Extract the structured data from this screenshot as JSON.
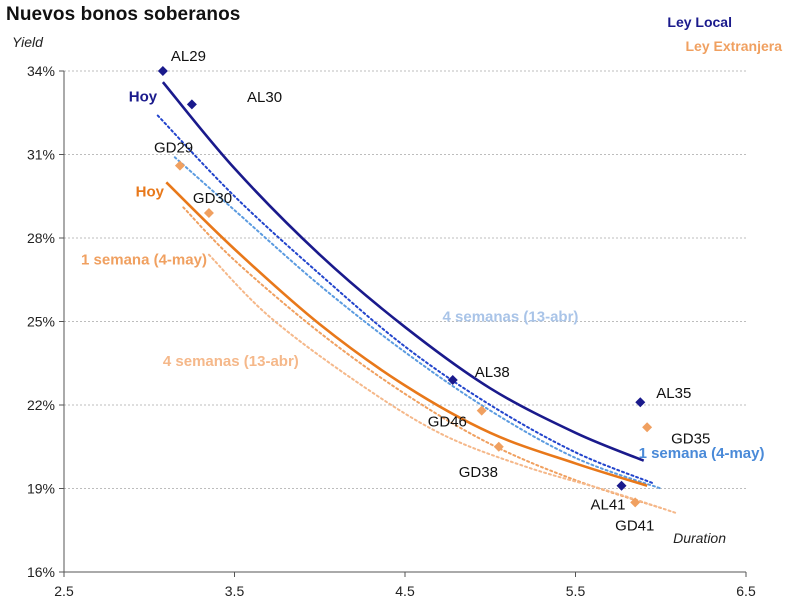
{
  "chart_data": {
    "type": "scatter",
    "title": "Nuevos bonos soberanos",
    "ylabel": "Yield",
    "xlabel": "Duration",
    "xlim": [
      2.5,
      6.5
    ],
    "ylim": [
      16,
      34
    ],
    "xticks": [
      2.5,
      3.5,
      4.5,
      5.5,
      6.5
    ],
    "xtick_labels": [
      "2.5",
      "3.5",
      "4.5",
      "5.5",
      "6.5"
    ],
    "yticks": [
      16,
      19,
      22,
      25,
      28,
      31,
      34
    ],
    "ytick_labels": [
      "16%",
      "19%",
      "22%",
      "25%",
      "28%",
      "31%",
      "34%"
    ],
    "grid": true,
    "legend": [
      {
        "label": "Ley Local",
        "color": "#1a1a8c"
      },
      {
        "label": "Ley Extranjera",
        "color": "#f0a060"
      }
    ],
    "series": [
      {
        "name": "Ley Local",
        "color": "#1a1a8c",
        "points": [
          {
            "name": "AL29",
            "x": 3.08,
            "y": 34.0
          },
          {
            "name": "AL30",
            "x": 3.25,
            "y": 32.8
          },
          {
            "name": "AL38",
            "x": 4.78,
            "y": 22.9
          },
          {
            "name": "AL35",
            "x": 5.88,
            "y": 22.1
          },
          {
            "name": "AL41",
            "x": 5.77,
            "y": 19.1
          }
        ]
      },
      {
        "name": "Ley Extranjera",
        "color": "#f0a060",
        "points": [
          {
            "name": "GD29",
            "x": 3.18,
            "y": 30.6
          },
          {
            "name": "GD30",
            "x": 3.35,
            "y": 28.9
          },
          {
            "name": "GD46",
            "x": 4.95,
            "y": 21.8
          },
          {
            "name": "GD38",
            "x": 5.05,
            "y": 20.5
          },
          {
            "name": "GD35",
            "x": 5.92,
            "y": 21.2
          },
          {
            "name": "GD41",
            "x": 5.85,
            "y": 18.5
          }
        ]
      }
    ],
    "curves": [
      {
        "name": "Hoy (Ley Local)",
        "color": "#1a1a8c",
        "style": "solid",
        "x": [
          3.08,
          3.5,
          4.0,
          4.5,
          5.0,
          5.5,
          5.9
        ],
        "y": [
          33.6,
          30.5,
          27.4,
          24.8,
          22.6,
          21.0,
          20.0
        ]
      },
      {
        "name": "1 semana (4-may) Ley Local",
        "color": "#2244cc",
        "style": "dotted",
        "x": [
          3.05,
          3.5,
          4.0,
          4.5,
          5.0,
          5.5,
          5.95
        ],
        "y": [
          32.4,
          29.5,
          26.7,
          24.1,
          22.0,
          20.3,
          19.2
        ]
      },
      {
        "name": "4 semanas (13-abr) Ley Local",
        "color": "#5b9be0",
        "style": "dotted",
        "x": [
          3.15,
          3.5,
          4.0,
          4.5,
          5.0,
          5.5,
          6.0
        ],
        "y": [
          30.9,
          29.0,
          26.3,
          23.9,
          21.8,
          20.1,
          19.0
        ]
      },
      {
        "name": "Hoy (Ley Extranjera)",
        "color": "#e8781a",
        "style": "solid",
        "x": [
          3.1,
          3.5,
          4.0,
          4.5,
          5.0,
          5.5,
          5.92
        ],
        "y": [
          30.0,
          27.6,
          24.9,
          22.7,
          21.0,
          19.9,
          19.1
        ]
      },
      {
        "name": "1 semana (4-may) Ley Extranjera",
        "color": "#f0a060",
        "style": "dotted",
        "x": [
          3.2,
          3.5,
          4.0,
          4.5,
          5.0,
          5.5,
          6.0
        ],
        "y": [
          29.1,
          27.2,
          24.6,
          22.4,
          20.6,
          19.3,
          18.3
        ]
      },
      {
        "name": "4 semanas (13-abr) Ley Extranjera",
        "color": "#f5b88a",
        "style": "dotted",
        "x": [
          3.35,
          3.7,
          4.2,
          4.7,
          5.2,
          5.7,
          6.1
        ],
        "y": [
          27.4,
          25.2,
          22.9,
          21.0,
          19.8,
          18.9,
          18.1
        ]
      }
    ],
    "annotations": [
      {
        "text": "Hoy",
        "color": "#1a1a8c",
        "x": 2.88,
        "y": 32.9
      },
      {
        "text": "Hoy",
        "color": "#e8781a",
        "x": 2.92,
        "y": 29.5
      },
      {
        "text": "1 semana (4-may)",
        "color": "#f0a060",
        "x": 2.6,
        "y": 27.05
      },
      {
        "text": "4 semanas (13-abr)",
        "color": "#f5b88a",
        "x": 3.08,
        "y": 23.4
      },
      {
        "text": "4 semanas (13-abr)",
        "color": "#a9c4e8",
        "x": 4.72,
        "y": 25.0
      },
      {
        "text": "1 semana (4-may)",
        "color": "#4a8ad8",
        "x": 5.87,
        "y": 20.1
      }
    ]
  }
}
